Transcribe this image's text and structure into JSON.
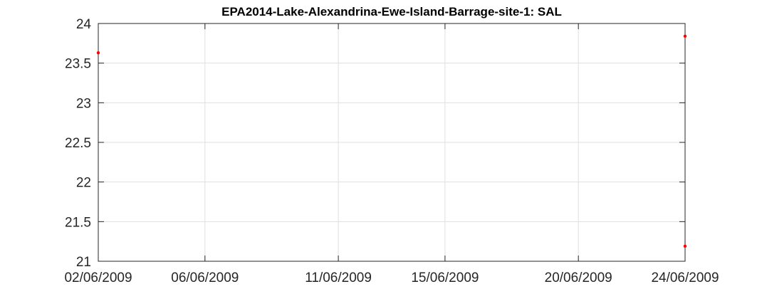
{
  "chart_data": {
    "type": "scatter",
    "title": "EPA2014-Lake-Alexandrina-Ewe-Island-Barrage-site-1: SAL",
    "xlabel": "",
    "ylabel": "",
    "x_axis": {
      "type": "date",
      "range": [
        "2009-06-02",
        "2009-06-24"
      ],
      "ticks": [
        "02/06/2009",
        "06/06/2009",
        "11/06/2009",
        "15/06/2009",
        "20/06/2009",
        "24/06/2009"
      ]
    },
    "y_axis": {
      "range": [
        21,
        24
      ],
      "ticks": [
        "21",
        "21.5",
        "22",
        "22.5",
        "23",
        "23.5",
        "24"
      ]
    },
    "grid": true,
    "series": [
      {
        "color": "#ff0000",
        "points": [
          {
            "x": "2009-06-02",
            "y": 23.63
          },
          {
            "x": "2009-06-24",
            "y": 23.84
          },
          {
            "x": "2009-06-24",
            "y": 21.19
          }
        ]
      }
    ]
  },
  "colors": {
    "axis": "#262626",
    "grid": "#dfdfdf",
    "marker": "#ff0000"
  }
}
